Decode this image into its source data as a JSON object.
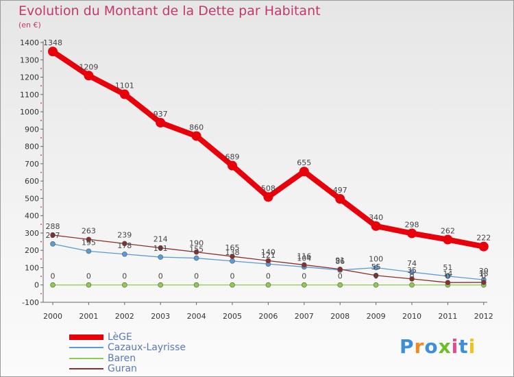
{
  "header": {
    "title": "Evolution du Montant de la Dette par Habitant",
    "unit": "(en €)"
  },
  "brand": {
    "text": "Proxiti",
    "colors": [
      "#3d8fd8",
      "#f08a1c",
      "#3d8fd8",
      "#6cbf2a",
      "#e64a8c",
      "#3d8fd8",
      "#f0c21c"
    ]
  },
  "chart_data": {
    "type": "line",
    "title": "Evolution du Montant de la Dette par Habitant",
    "subtitle": "(en €)",
    "xlabel": "",
    "ylabel": "",
    "x": [
      "2000",
      "2001",
      "2002",
      "2003",
      "2004",
      "2005",
      "2006",
      "2007",
      "2008",
      "2009",
      "2010",
      "2011",
      "2012"
    ],
    "ylim": [
      -100,
      1400
    ],
    "yticks": [
      -100,
      0,
      100,
      200,
      300,
      400,
      500,
      600,
      700,
      800,
      900,
      1000,
      1100,
      1200,
      1300,
      1400
    ],
    "grid": false,
    "legend_position": "bottom-left",
    "series": [
      {
        "name": "LèGE",
        "color": "#e8000a",
        "values": [
          1348,
          1209,
          1101,
          937,
          860,
          689,
          508,
          655,
          497,
          340,
          298,
          262,
          222
        ],
        "labels": [
          "1348",
          "1209",
          "1101",
          "937",
          "860",
          "689",
          "508",
          "655",
          "497",
          "340",
          "298",
          "262",
          "222"
        ]
      },
      {
        "name": "Cazaux-Layrisse",
        "color": "#5b9bd5",
        "values": [
          237,
          195,
          178,
          161,
          155,
          138,
          121,
          104,
          86,
          100,
          74,
          51,
          30
        ],
        "labels": [
          "237",
          "195",
          "178",
          "161",
          "155",
          "138",
          "121",
          "104",
          "86",
          "100",
          "74",
          "51",
          "30"
        ]
      },
      {
        "name": "Baren",
        "color": "#8ccc4a",
        "values": [
          0,
          0,
          0,
          0,
          0,
          0,
          0,
          0,
          0,
          0,
          0,
          0,
          0
        ],
        "labels": [
          "0",
          "0",
          "0",
          "0",
          "0",
          "0",
          "0",
          "0",
          "0",
          "0",
          "0",
          "0",
          "0"
        ]
      },
      {
        "name": "Guran",
        "color": "#8b2e2e",
        "values": [
          288,
          263,
          239,
          214,
          190,
          165,
          140,
          116,
          91,
          55,
          35,
          14,
          15
        ],
        "labels": [
          "288",
          "263",
          "239",
          "214",
          "190",
          "165",
          "140",
          "116",
          "91",
          "55",
          "35",
          "14",
          "15"
        ]
      }
    ]
  }
}
